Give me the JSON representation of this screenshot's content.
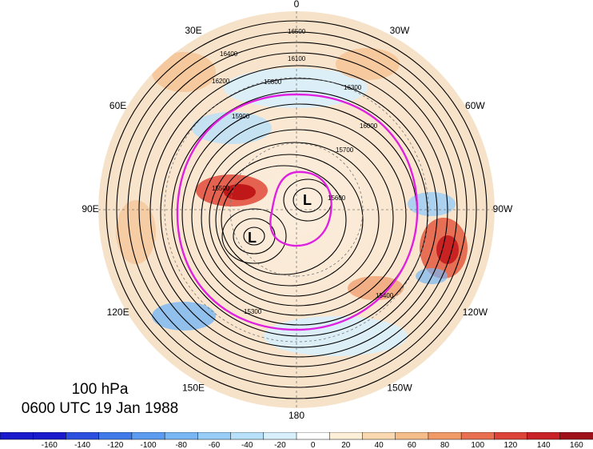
{
  "map": {
    "level": "100 hPa",
    "valid_time": "0600 UTC 19 Jan 1988",
    "projection": "north polar stereographic",
    "longitude_labels": [
      {
        "lon": 0,
        "text": "0"
      },
      {
        "lon": -30,
        "text": "30W"
      },
      {
        "lon": -60,
        "text": "60W"
      },
      {
        "lon": -90,
        "text": "90W"
      },
      {
        "lon": -120,
        "text": "120W"
      },
      {
        "lon": -150,
        "text": "150W"
      },
      {
        "lon": 180,
        "text": "180"
      },
      {
        "lon": 150,
        "text": "150E"
      },
      {
        "lon": 120,
        "text": "120E"
      },
      {
        "lon": 90,
        "text": "90E"
      },
      {
        "lon": 60,
        "text": "60E"
      },
      {
        "lon": 30,
        "text": "30E"
      }
    ],
    "low_centers": [
      "L",
      "L"
    ],
    "contour_labels": [
      "16500",
      "16400",
      "16300",
      "16200",
      "16100",
      "16000",
      "15900",
      "15800",
      "15700",
      "15600",
      "15500",
      "15400",
      "15300"
    ],
    "highlight_color": "#e020e0"
  },
  "colorbar": {
    "tick_labels": [
      "-160",
      "-140",
      "-120",
      "-100",
      "-80",
      "-60",
      "-40",
      "-20",
      "0",
      "20",
      "40",
      "60",
      "80",
      "100",
      "120",
      "140",
      "160"
    ],
    "colors": [
      "#1a1acc",
      "#2d4fe0",
      "#3f7ae8",
      "#5b9cf0",
      "#78b6f4",
      "#98cdf7",
      "#b8e0fa",
      "#d8f0fc",
      "#ffffff",
      "#fdf0d8",
      "#fad8b0",
      "#f5bd8a",
      "#f09a68",
      "#e87050",
      "#dd4438",
      "#c82228",
      "#a0101a"
    ]
  }
}
